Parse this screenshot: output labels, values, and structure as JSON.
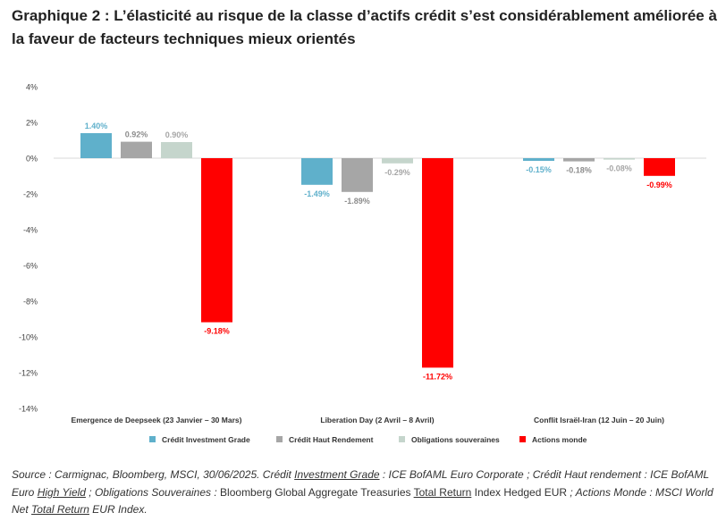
{
  "title": "Graphique 2 : L’élasticité au risque de la classe d’actifs crédit s’est considérablement améliorée à la faveur de facteurs techniques mieux orientés",
  "chart_data": {
    "type": "bar",
    "categories": [
      "Emergence de Deepseek (23 Janvier – 30  Mars)",
      "Liberation Day (2 Avril – 8 Avril)",
      "Conflit Israël-Iran (12 Juin – 20 Juin)"
    ],
    "series": [
      {
        "name": "Crédit Investment Grade",
        "color": "#5fb0cb",
        "values": [
          1.4,
          -1.49,
          -0.15
        ],
        "labels": [
          "1.40%",
          "-1.49%",
          "-0.15%"
        ]
      },
      {
        "name": "Crédit Haut Rendement",
        "color": "#a6a6a6",
        "values": [
          0.92,
          -1.89,
          -0.18
        ],
        "labels": [
          "0.92%",
          "-1.89%",
          "-0.18%"
        ]
      },
      {
        "name": "Obligations souveraines",
        "color": "#c5d5cc",
        "values": [
          0.9,
          -0.29,
          -0.08
        ],
        "labels": [
          "0.90%",
          "-0.29%",
          "-0.08%"
        ]
      },
      {
        "name": "Actions monde",
        "color": "#ff0000",
        "values": [
          -9.18,
          -11.72,
          -0.99
        ],
        "labels": [
          "-9.18%",
          "-11.72%",
          "-0.99%"
        ]
      }
    ],
    "yticks": [
      4,
      2,
      0,
      -2,
      -4,
      -6,
      -8,
      -10,
      -12,
      -14
    ],
    "ytick_labels": [
      "4%",
      "2%",
      "0%",
      "-2%",
      "-4%",
      "-6%",
      "-8%",
      "-10%",
      "-12%",
      "-14%"
    ],
    "ylim": [
      -14,
      4
    ],
    "grid": false,
    "legend_position": "bottom",
    "label_colors": {
      "Crédit Investment Grade": "#5fb0cb",
      "Crédit Haut Rendement": "#8c8c8c",
      "Obligations souveraines": "#a6a6a6",
      "Actions monde": "#ff0000"
    }
  },
  "source": {
    "parts": [
      {
        "text": "Source : Carmignac, Bloomberg, MSCI, 30/06/2025. Crédit ",
        "style": ""
      },
      {
        "text": "Investment Grade",
        "style": "u"
      },
      {
        "text": " : ICE BofAML Euro Corporate ; Crédit Haut rendement : ICE BofAML Euro ",
        "style": ""
      },
      {
        "text": "High Yield",
        "style": "u"
      },
      {
        "text": " ; Obligations Souveraines : ",
        "style": ""
      },
      {
        "text": "Bloomberg Global Aggregate Treasuries ",
        "style": "n"
      },
      {
        "text": "Total Return",
        "style": "u n"
      },
      {
        "text": " Index Hedged EUR",
        "style": "n"
      },
      {
        "text": " ; Actions Monde : MSCI World Net ",
        "style": ""
      },
      {
        "text": "Total Return",
        "style": "u"
      },
      {
        "text": " EUR Index.",
        "style": ""
      }
    ]
  }
}
